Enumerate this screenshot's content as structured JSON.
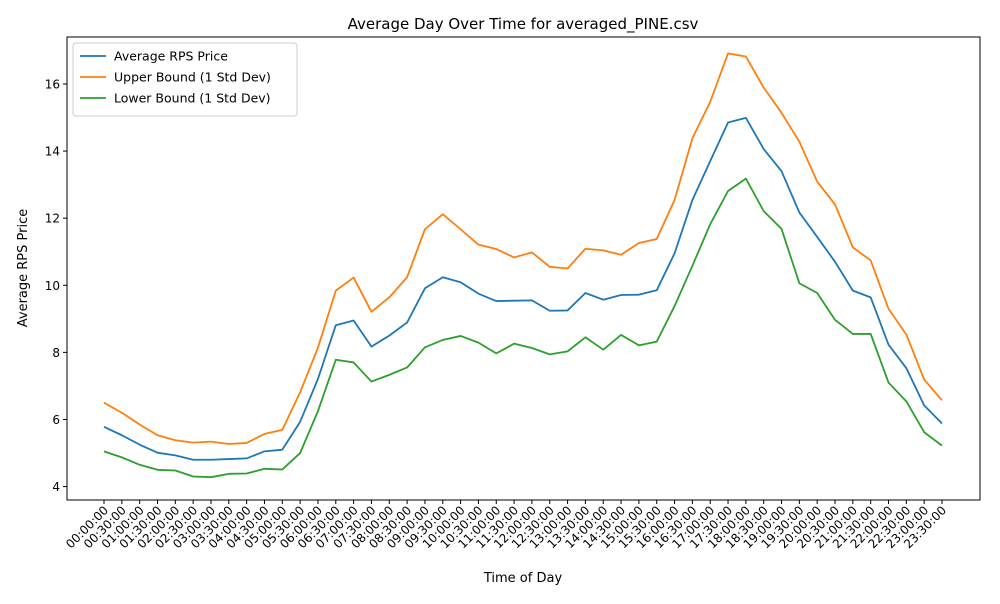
{
  "chart_data": {
    "type": "line",
    "title": "Average Day Over Time for averaged_PINE.csv",
    "xlabel": "Time of Day",
    "ylabel": "Average RPS Price",
    "ylim": [
      3.6,
      17.4
    ],
    "yticks": [
      4,
      6,
      8,
      10,
      12,
      14,
      16
    ],
    "ytick_labels": [
      "4",
      "6",
      "8",
      "10",
      "12",
      "14",
      "16"
    ],
    "grid": false,
    "legend_position": "top-left",
    "categories": [
      "00:00:00",
      "00:30:00",
      "01:00:00",
      "01:30:00",
      "02:00:00",
      "02:30:00",
      "03:00:00",
      "03:30:00",
      "04:00:00",
      "04:30:00",
      "05:00:00",
      "05:30:00",
      "06:00:00",
      "06:30:00",
      "07:00:00",
      "07:30:00",
      "08:00:00",
      "08:30:00",
      "09:00:00",
      "09:30:00",
      "10:00:00",
      "10:30:00",
      "11:00:00",
      "11:30:00",
      "12:00:00",
      "12:30:00",
      "13:00:00",
      "13:30:00",
      "14:00:00",
      "14:30:00",
      "15:00:00",
      "15:30:00",
      "16:00:00",
      "16:30:00",
      "17:00:00",
      "17:30:00",
      "18:00:00",
      "18:30:00",
      "19:00:00",
      "19:30:00",
      "20:00:00",
      "20:30:00",
      "21:00:00",
      "21:30:00",
      "22:00:00",
      "22:30:00",
      "23:00:00",
      "23:30:00"
    ],
    "series": [
      {
        "name": "Average RPS Price",
        "color": "#1f77b4",
        "values": [
          5.78,
          5.53,
          5.25,
          5.01,
          4.93,
          4.8,
          4.8,
          4.82,
          4.84,
          5.05,
          5.1,
          5.93,
          7.21,
          8.81,
          8.95,
          8.17,
          8.5,
          8.89,
          9.91,
          10.24,
          10.09,
          9.75,
          9.53,
          9.54,
          9.55,
          9.24,
          9.25,
          9.77,
          9.57,
          9.71,
          9.72,
          9.85,
          10.95,
          12.54,
          13.7,
          14.85,
          14.99,
          14.06,
          13.4,
          12.17,
          11.44,
          10.7,
          9.84,
          9.64,
          8.23,
          7.53,
          6.42,
          5.88
        ]
      },
      {
        "name": "Upper Bound (1 Std Dev)",
        "color": "#ff7f0e",
        "values": [
          6.5,
          6.2,
          5.85,
          5.53,
          5.38,
          5.31,
          5.34,
          5.27,
          5.3,
          5.57,
          5.69,
          6.81,
          8.14,
          9.84,
          10.23,
          9.21,
          9.64,
          10.24,
          11.67,
          12.12,
          11.67,
          11.21,
          11.08,
          10.83,
          10.98,
          10.55,
          10.5,
          11.09,
          11.04,
          10.91,
          11.26,
          11.38,
          12.54,
          14.38,
          15.47,
          16.91,
          16.82,
          15.89,
          15.14,
          14.28,
          13.09,
          12.41,
          11.13,
          10.74,
          9.3,
          8.53,
          7.19,
          6.57
        ]
      },
      {
        "name": "Lower Bound (1 Std Dev)",
        "color": "#2ca02c",
        "values": [
          5.05,
          4.87,
          4.65,
          4.5,
          4.48,
          4.3,
          4.28,
          4.38,
          4.39,
          4.53,
          4.51,
          5.0,
          6.25,
          7.78,
          7.7,
          7.13,
          7.33,
          7.55,
          8.15,
          8.37,
          8.49,
          8.29,
          7.97,
          8.26,
          8.13,
          7.94,
          8.03,
          8.45,
          8.08,
          8.52,
          8.21,
          8.32,
          9.38,
          10.58,
          11.82,
          12.81,
          13.18,
          12.21,
          11.68,
          10.06,
          9.77,
          8.97,
          8.55,
          8.55,
          7.1,
          6.54,
          5.62,
          5.22
        ]
      }
    ]
  }
}
